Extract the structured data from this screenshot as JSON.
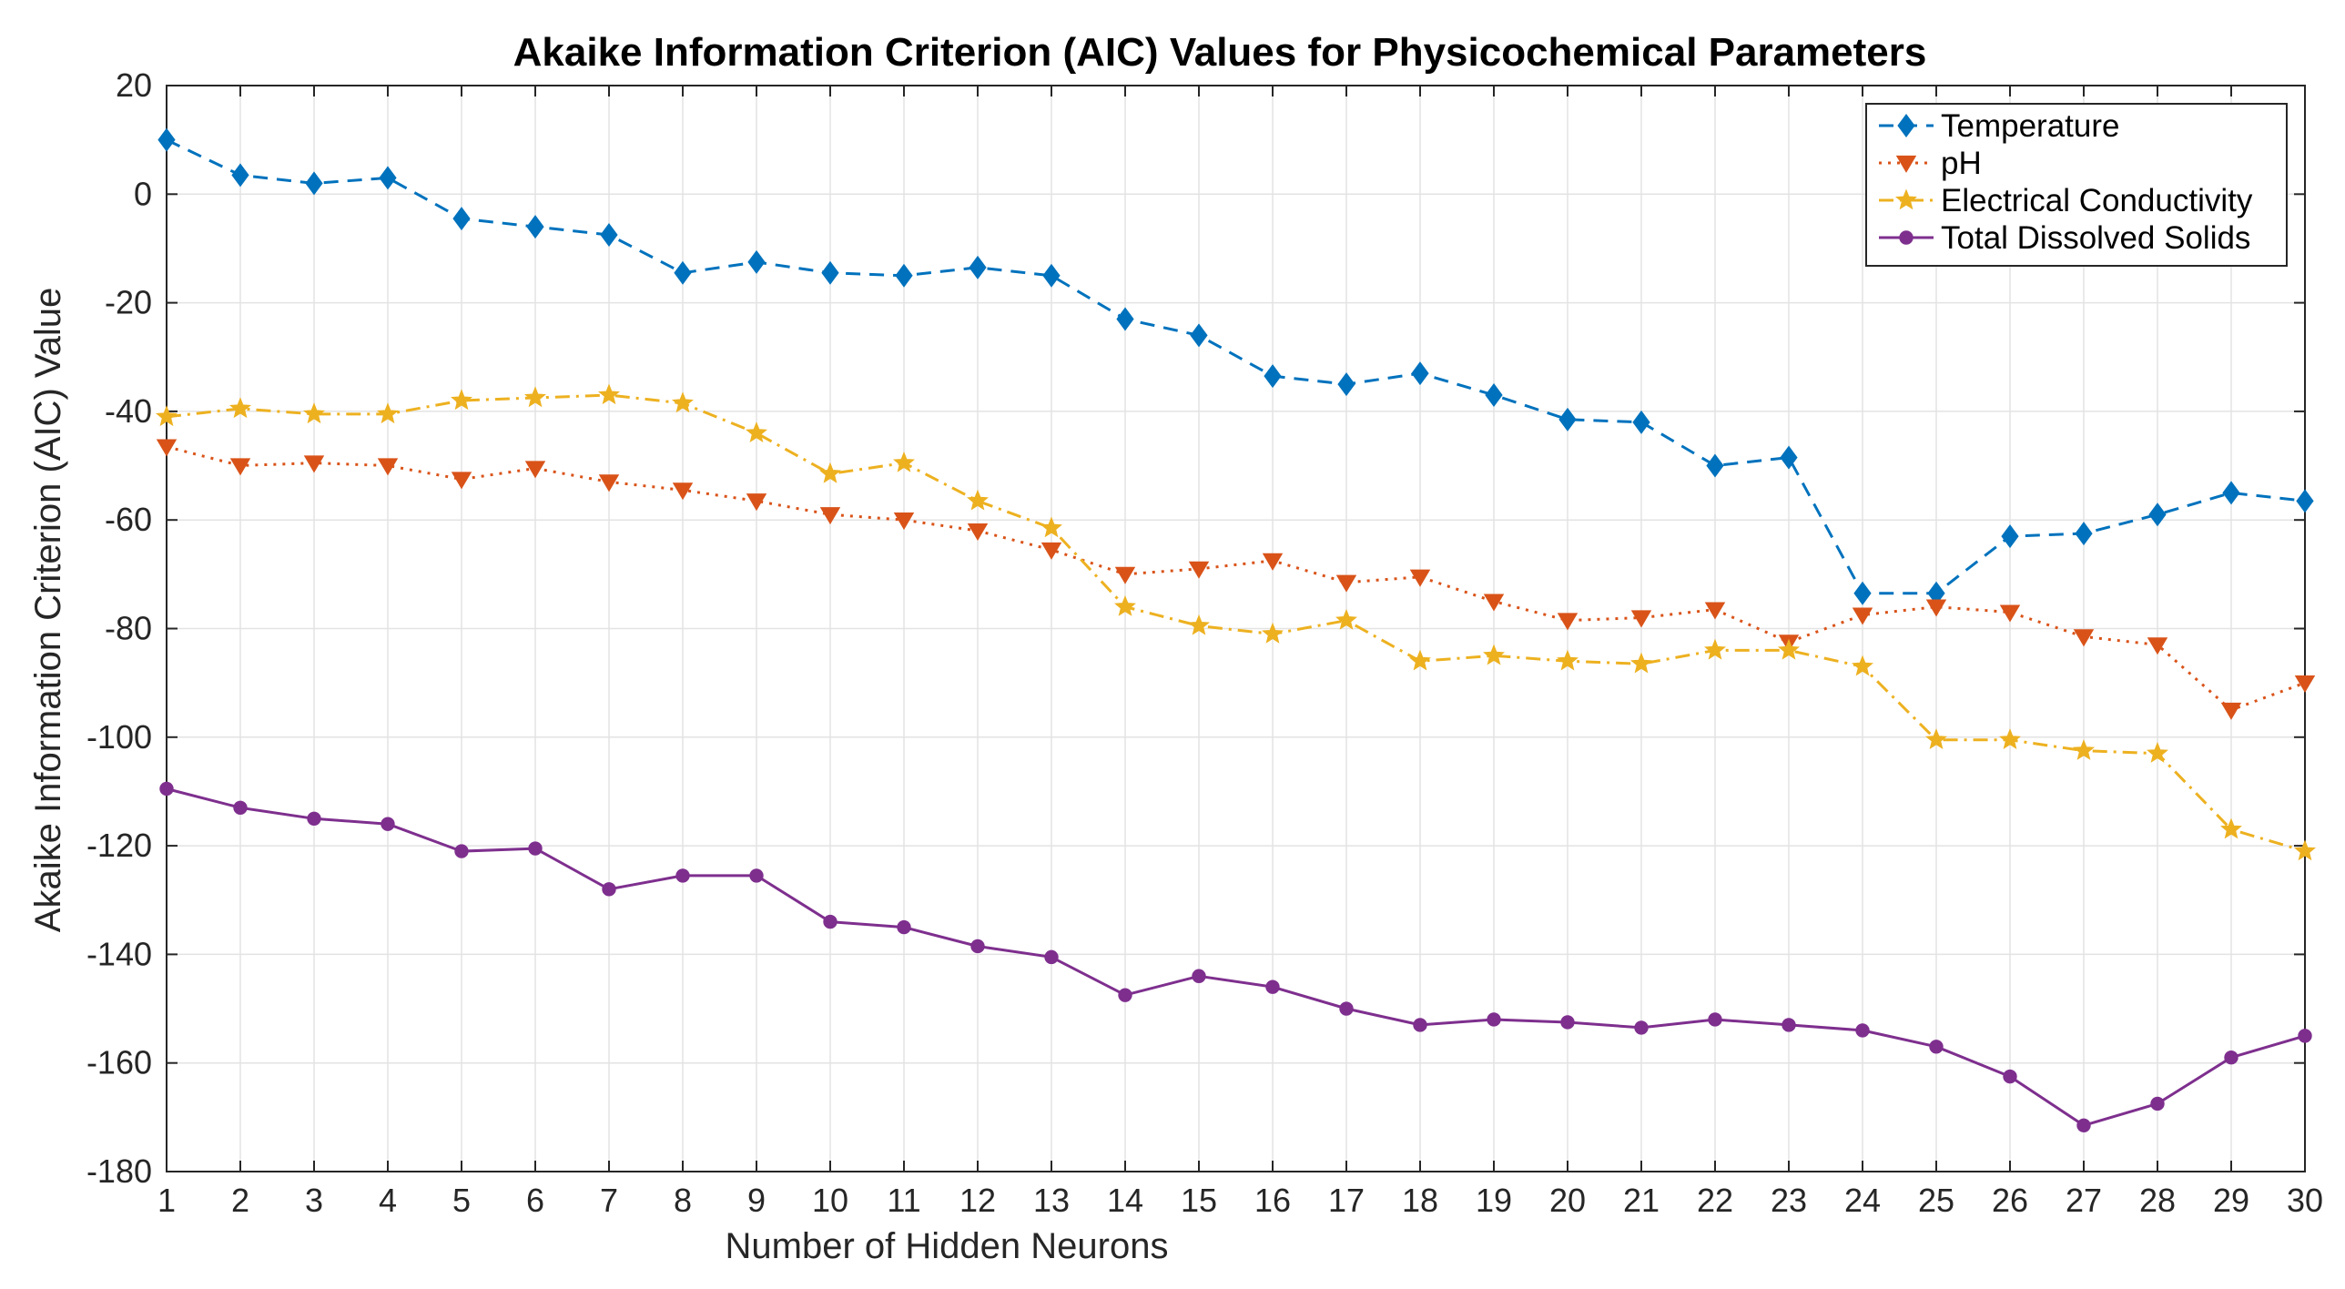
{
  "chart_data": {
    "type": "line",
    "title": "Akaike Information Criterion (AIC) Values for Physicochemical Parameters",
    "xlabel": "Number of Hidden Neurons",
    "ylabel": "Akaike Information Criterion (AIC) Value",
    "xlim": [
      1,
      30
    ],
    "ylim": [
      -180,
      20
    ],
    "xticks": [
      1,
      2,
      3,
      4,
      5,
      6,
      7,
      8,
      9,
      10,
      11,
      12,
      13,
      14,
      15,
      16,
      17,
      18,
      19,
      20,
      21,
      22,
      23,
      24,
      25,
      26,
      27,
      28,
      29,
      30
    ],
    "yticks": [
      -180,
      -160,
      -140,
      -120,
      -100,
      -80,
      -60,
      -40,
      -20,
      0,
      20
    ],
    "grid": true,
    "legend_location": "top-right",
    "x": [
      1,
      2,
      3,
      4,
      5,
      6,
      7,
      8,
      9,
      10,
      11,
      12,
      13,
      14,
      15,
      16,
      17,
      18,
      19,
      20,
      21,
      22,
      23,
      24,
      25,
      26,
      27,
      28,
      29,
      30
    ],
    "series": [
      {
        "name": "Temperature",
        "color": "#0072BD",
        "line_style": "dashed",
        "marker": "diamond",
        "values": [
          10,
          3.5,
          2,
          3,
          -4.5,
          -6,
          -7.5,
          -14.5,
          -12.5,
          -14.5,
          -15,
          -13.5,
          -15,
          -23,
          -26,
          -33.5,
          -35,
          -33,
          -37,
          -41.5,
          -42,
          -50,
          -48.5,
          -73.5,
          -73.5,
          -63,
          -62.5,
          -59,
          -55,
          -56.5
        ]
      },
      {
        "name": "pH",
        "color": "#D95319",
        "line_style": "dotted",
        "marker": "triangle-down",
        "values": [
          -46.5,
          -50,
          -49.5,
          -50,
          -52.5,
          -50.5,
          -53,
          -54.5,
          -56.5,
          -59,
          -60,
          -62,
          -65.5,
          -70,
          -69,
          -67.5,
          -71.5,
          -70.5,
          -75,
          -78.5,
          -78,
          -76.5,
          -82.5,
          -77.5,
          -76,
          -77,
          -81.5,
          -83,
          -95,
          -90
        ]
      },
      {
        "name": "Electrical Conductivity",
        "color": "#EDB120",
        "line_style": "dash-dot",
        "marker": "star",
        "values": [
          -41,
          -39.5,
          -40.5,
          -40.5,
          -38,
          -37.5,
          -37,
          -38.5,
          -44,
          -51.5,
          -49.5,
          -56.5,
          -61.5,
          -76,
          -79.5,
          -81,
          -78.5,
          -86,
          -85,
          -86,
          -86.5,
          -84,
          -84,
          -87,
          -100.5,
          -100.5,
          -102.5,
          -103,
          -117,
          -121
        ]
      },
      {
        "name": "Total Dissolved Solids",
        "color": "#7E2F8E",
        "line_style": "solid",
        "marker": "circle",
        "values": [
          -109.5,
          -113,
          -115,
          -116,
          -121,
          -120.5,
          -128,
          -125.5,
          -125.5,
          -134,
          -135,
          -138.5,
          -140.5,
          -147.5,
          -144,
          -146,
          -150,
          -153,
          -152,
          -152.5,
          -153.5,
          -152,
          -153,
          -154,
          -157,
          -162.5,
          -171.5,
          -167.5,
          -159,
          -155
        ]
      }
    ]
  }
}
